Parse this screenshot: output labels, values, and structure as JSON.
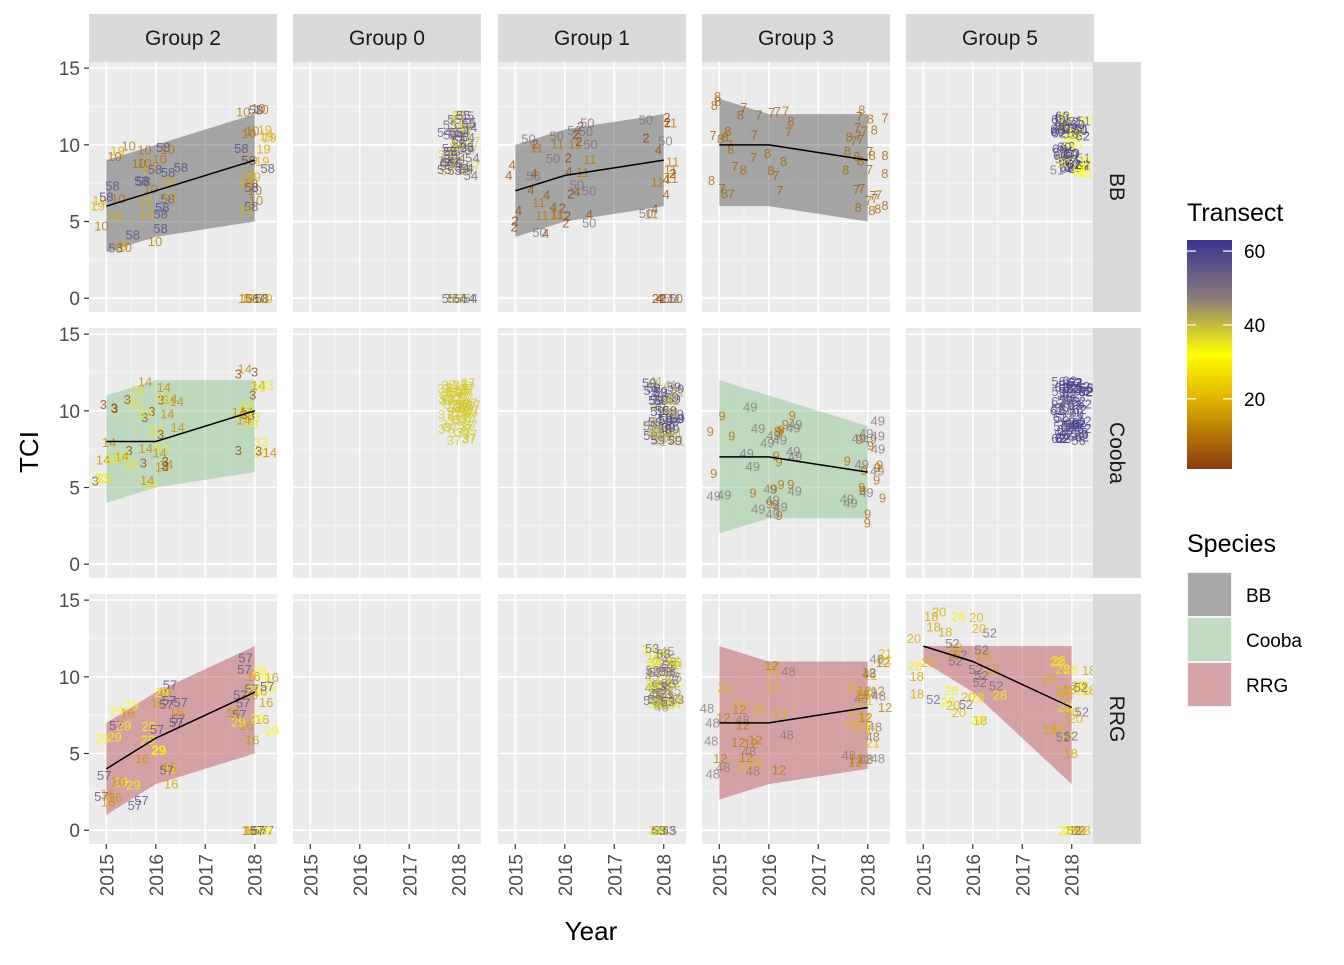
{
  "chart_data": {
    "type": "scatter",
    "xlabel": "Year",
    "ylabel": "TCI",
    "x_ticks": [
      "2015",
      "2016",
      "2017",
      "2018"
    ],
    "y_ticks": [
      "0",
      "5",
      "10",
      "15"
    ],
    "xlim": [
      2014.65,
      2018.45
    ],
    "ylim": [
      -0.9,
      15.4
    ],
    "grid": true,
    "columns": [
      "Group 2",
      "Group 0",
      "Group 1",
      "Group 3",
      "Group 5"
    ],
    "rows": [
      "BB",
      "Cooba",
      "RRG"
    ],
    "colorbar": {
      "title": "Transect",
      "ticks": [
        "20",
        "40",
        "60"
      ],
      "range": [
        1,
        63
      ],
      "colors": [
        "#8b3a0f",
        "#e0c000",
        "#ffff00",
        "#7a6a8e",
        "#3a3391"
      ]
    },
    "species_legend": {
      "title": "Species",
      "items": [
        {
          "label": "BB",
          "color": "#4d4d4d"
        },
        {
          "label": "Cooba",
          "color": "#84c08a"
        },
        {
          "label": "RRG",
          "color": "#b5474d"
        }
      ]
    },
    "panels": [
      {
        "col": 0,
        "row": 0,
        "transects": [
          10,
          19,
          58
        ],
        "trend": {
          "x": [
            2015,
            2016,
            2018
          ],
          "y": [
            6,
            7,
            9
          ],
          "ymin": [
            3,
            4,
            5
          ],
          "ymax": [
            9,
            10,
            12
          ]
        }
      },
      {
        "col": 1,
        "row": 0,
        "transects": [
          54,
          37,
          55
        ],
        "trend": null
      },
      {
        "col": 2,
        "row": 0,
        "transects": [
          11,
          4,
          2,
          50
        ],
        "trend": {
          "x": [
            2015,
            2016,
            2018
          ],
          "y": [
            7,
            8,
            9
          ],
          "ymin": [
            4,
            5,
            6
          ],
          "ymax": [
            10,
            11,
            12
          ]
        }
      },
      {
        "col": 3,
        "row": 0,
        "transects": [
          7,
          8
        ],
        "trend": {
          "x": [
            2015,
            2016,
            2018
          ],
          "y": [
            10,
            10,
            9
          ],
          "ymin": [
            6,
            6,
            5
          ],
          "ymax": [
            13,
            12,
            12
          ]
        }
      },
      {
        "col": 4,
        "row": 0,
        "transects": [
          62,
          51,
          60,
          30
        ],
        "trend": null
      },
      {
        "col": 0,
        "row": 1,
        "transects": [
          3,
          14,
          33
        ],
        "trend": {
          "x": [
            2015,
            2016,
            2018
          ],
          "y": [
            8,
            8,
            10
          ],
          "ymin": [
            4,
            5,
            6
          ],
          "ymax": [
            11,
            12,
            12
          ]
        }
      },
      {
        "col": 1,
        "row": 1,
        "transects": [
          37
        ],
        "trend": null
      },
      {
        "col": 2,
        "row": 1,
        "transects": [
          59,
          41
        ],
        "trend": null
      },
      {
        "col": 3,
        "row": 1,
        "transects": [
          9,
          49
        ],
        "trend": {
          "x": [
            2015,
            2016,
            2018
          ],
          "y": [
            7,
            7,
            6
          ],
          "ymin": [
            2,
            3,
            3
          ],
          "ymax": [
            12,
            11,
            9
          ]
        }
      },
      {
        "col": 4,
        "row": 1,
        "transects": [
          62,
          56
        ],
        "trend": null
      },
      {
        "col": 0,
        "row": 2,
        "transects": [
          16,
          57,
          29
        ],
        "trend": {
          "x": [
            2015,
            2016,
            2018
          ],
          "y": [
            4,
            6,
            9
          ],
          "ymin": [
            1,
            3,
            5
          ],
          "ymax": [
            7,
            9,
            12
          ]
        }
      },
      {
        "col": 1,
        "row": 2,
        "transects": [],
        "trend": null
      },
      {
        "col": 2,
        "row": 2,
        "transects": [
          53,
          34,
          45
        ],
        "trend": null
      },
      {
        "col": 3,
        "row": 2,
        "transects": [
          12,
          21,
          48
        ],
        "trend": {
          "x": [
            2015,
            2016,
            2018
          ],
          "y": [
            7,
            7,
            8
          ],
          "ymin": [
            2,
            3,
            4
          ],
          "ymax": [
            12,
            11,
            11
          ]
        }
      },
      {
        "col": 4,
        "row": 2,
        "transects": [
          18,
          20,
          52,
          28
        ],
        "trend": {
          "x": [
            2015,
            2016,
            2018
          ],
          "y": [
            12,
            11,
            8
          ],
          "ymin": [
            11,
            9,
            3
          ],
          "ymax": [
            12,
            12,
            12
          ]
        }
      }
    ]
  }
}
